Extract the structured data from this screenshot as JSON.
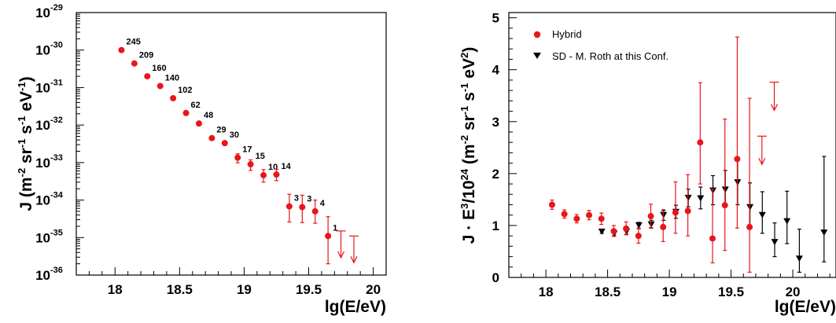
{
  "colors": {
    "hybrid": "#e8161b",
    "sd": "#000000",
    "axis": "#000000"
  },
  "chart_data": [
    {
      "type": "scatter",
      "title": "",
      "xlabel": "lg(E/eV)",
      "ylabel_parts": {
        "base": "J (m",
        "e1": "-2",
        "s1": " sr",
        "e2": "-1",
        "s2": " s",
        "e3": "-1",
        "s3": " eV",
        "e4": "-1",
        "end": ")"
      },
      "xlim": [
        17.7,
        20.1
      ],
      "ylim_log10": [
        -36,
        -29
      ],
      "log_y": true,
      "xticks": [
        "18",
        "18.5",
        "19",
        "19.5",
        "20"
      ],
      "yticks": [
        "-36",
        "-35",
        "-34",
        "-33",
        "-32",
        "-31",
        "-30",
        "-29"
      ],
      "ytick_base": "10",
      "series": [
        {
          "points": [
            {
              "x": 18.05,
              "y": 1e-30,
              "err_lo": 0,
              "err_hi": 0,
              "n": "245"
            },
            {
              "x": 18.15,
              "y": 4.4e-31,
              "err_lo": 0,
              "err_hi": 0,
              "n": "209"
            },
            {
              "x": 18.25,
              "y": 2e-31,
              "err_lo": 0,
              "err_hi": 0,
              "n": "160"
            },
            {
              "x": 18.35,
              "y": 1.1e-31,
              "err_lo": 0,
              "err_hi": 0,
              "n": "140"
            },
            {
              "x": 18.45,
              "y": 5.2e-32,
              "err_lo": 0,
              "err_hi": 0,
              "n": "102"
            },
            {
              "x": 18.55,
              "y": 2.1e-32,
              "err_lo": 0,
              "err_hi": 0,
              "n": "62"
            },
            {
              "x": 18.65,
              "y": 1.1e-32,
              "err_lo": 0,
              "err_hi": 0,
              "n": "48"
            },
            {
              "x": 18.75,
              "y": 4.5e-33,
              "err_lo": 0,
              "err_hi": 0,
              "n": "29"
            },
            {
              "x": 18.85,
              "y": 3.3e-33,
              "err_lo": 0,
              "err_hi": 0,
              "n": "30"
            },
            {
              "x": 18.95,
              "y": 1.35e-33,
              "err_lo": 3.6e-34,
              "err_hi": 3.6e-34,
              "n": "17"
            },
            {
              "x": 19.05,
              "y": 9e-34,
              "err_lo": 2.8e-34,
              "err_hi": 2.8e-34,
              "n": "15"
            },
            {
              "x": 19.15,
              "y": 4.6e-34,
              "err_lo": 1.6e-34,
              "err_hi": 1.9e-34,
              "n": "10"
            },
            {
              "x": 19.25,
              "y": 4.8e-34,
              "err_lo": 1.5e-34,
              "err_hi": 1.8e-34,
              "n": "14"
            },
            {
              "x": 19.35,
              "y": 6.8e-35,
              "err_lo": 4.2e-35,
              "err_hi": 7.5e-35,
              "n": "3"
            },
            {
              "x": 19.45,
              "y": 6.5e-35,
              "err_lo": 4e-35,
              "err_hi": 7e-35,
              "n": "3"
            },
            {
              "x": 19.55,
              "y": 5e-35,
              "err_lo": 2.6e-35,
              "err_hi": 5e-35,
              "n": "4"
            },
            {
              "x": 19.65,
              "y": 1.1e-35,
              "err_lo": 9e-36,
              "err_hi": 2.5e-35,
              "n": "1"
            }
          ],
          "upper_limits": [
            {
              "x": 19.75,
              "y": 1.5e-35
            },
            {
              "x": 19.85,
              "y": 1.1e-35
            }
          ]
        }
      ]
    },
    {
      "type": "scatter",
      "title": "",
      "xlabel": "lg(E/eV)",
      "ylabel_parts": {
        "base": "J · E",
        "e1": "3",
        "s1": "/10",
        "e2": "24",
        "s2": " (m",
        "e3": "-2",
        "s3": " sr",
        "e4": "-1",
        "s4": " s",
        "e5": "-1",
        "s5": " eV",
        "e6": "2",
        "end": ")"
      },
      "xlim": [
        17.7,
        20.35
      ],
      "ylim": [
        0,
        5.1
      ],
      "xticks": [
        "18",
        "18.5",
        "19",
        "19.5",
        "20"
      ],
      "yticks": [
        "0",
        "1",
        "2",
        "3",
        "4",
        "5"
      ],
      "legend": {
        "position": "top-left",
        "entries": [
          "Hybrid",
          "SD - M. Roth at this Conf."
        ]
      },
      "series": [
        {
          "name": "Hybrid",
          "marker": "circle",
          "points": [
            {
              "x": 18.05,
              "y": 1.4,
              "lo": 1.31,
              "hi": 1.49
            },
            {
              "x": 18.15,
              "y": 1.22,
              "lo": 1.14,
              "hi": 1.3
            },
            {
              "x": 18.25,
              "y": 1.13,
              "lo": 1.05,
              "hi": 1.21
            },
            {
              "x": 18.35,
              "y": 1.2,
              "lo": 1.11,
              "hi": 1.29
            },
            {
              "x": 18.45,
              "y": 1.13,
              "lo": 1.02,
              "hi": 1.24
            },
            {
              "x": 18.55,
              "y": 0.89,
              "lo": 0.79,
              "hi": 1.0
            },
            {
              "x": 18.65,
              "y": 0.94,
              "lo": 0.82,
              "hi": 1.07
            },
            {
              "x": 18.75,
              "y": 0.8,
              "lo": 0.66,
              "hi": 0.95
            },
            {
              "x": 18.85,
              "y": 1.18,
              "lo": 0.96,
              "hi": 1.41
            },
            {
              "x": 18.95,
              "y": 0.97,
              "lo": 0.69,
              "hi": 1.28
            },
            {
              "x": 19.05,
              "y": 1.25,
              "lo": 0.85,
              "hi": 1.84
            },
            {
              "x": 19.15,
              "y": 1.28,
              "lo": 0.8,
              "hi": 1.98
            },
            {
              "x": 19.25,
              "y": 2.6,
              "lo": 1.8,
              "hi": 3.75
            },
            {
              "x": 19.35,
              "y": 0.75,
              "lo": 0.28,
              "hi": 1.7
            },
            {
              "x": 19.45,
              "y": 1.39,
              "lo": 0.52,
              "hi": 3.05
            },
            {
              "x": 19.55,
              "y": 2.28,
              "lo": 0.95,
              "hi": 4.63
            },
            {
              "x": 19.65,
              "y": 0.97,
              "lo": 0.1,
              "hi": 3.45
            }
          ],
          "upper_limits": [
            {
              "x": 19.75,
              "y": 2.72
            },
            {
              "x": 19.85,
              "y": 3.76
            }
          ]
        },
        {
          "name": "SD - M. Roth at this Conf.",
          "marker": "triangle-down",
          "points": [
            {
              "x": 18.45,
              "y": 0.88,
              "lo": 0.85,
              "hi": 0.91
            },
            {
              "x": 18.55,
              "y": 0.84,
              "lo": 0.8,
              "hi": 0.88
            },
            {
              "x": 18.65,
              "y": 0.88,
              "lo": 0.83,
              "hi": 0.93
            },
            {
              "x": 18.75,
              "y": 1.0,
              "lo": 0.94,
              "hi": 1.06
            },
            {
              "x": 18.85,
              "y": 1.02,
              "lo": 0.95,
              "hi": 1.1
            },
            {
              "x": 18.95,
              "y": 1.2,
              "lo": 1.1,
              "hi": 1.3
            },
            {
              "x": 19.05,
              "y": 1.26,
              "lo": 1.14,
              "hi": 1.39
            },
            {
              "x": 19.15,
              "y": 1.53,
              "lo": 1.36,
              "hi": 1.7
            },
            {
              "x": 19.25,
              "y": 1.52,
              "lo": 1.32,
              "hi": 1.74
            },
            {
              "x": 19.35,
              "y": 1.67,
              "lo": 1.4,
              "hi": 1.96
            },
            {
              "x": 19.45,
              "y": 1.69,
              "lo": 1.36,
              "hi": 2.06
            },
            {
              "x": 19.55,
              "y": 1.83,
              "lo": 1.4,
              "hi": 2.31
            },
            {
              "x": 19.65,
              "y": 1.35,
              "lo": 0.95,
              "hi": 1.82
            },
            {
              "x": 19.75,
              "y": 1.2,
              "lo": 0.85,
              "hi": 1.65
            },
            {
              "x": 19.85,
              "y": 0.68,
              "lo": 0.4,
              "hi": 1.05
            },
            {
              "x": 19.95,
              "y": 1.08,
              "lo": 0.65,
              "hi": 1.66
            },
            {
              "x": 20.05,
              "y": 0.36,
              "lo": 0.1,
              "hi": 0.93
            },
            {
              "x": 20.25,
              "y": 0.86,
              "lo": 0.3,
              "hi": 2.33
            }
          ]
        }
      ]
    }
  ]
}
